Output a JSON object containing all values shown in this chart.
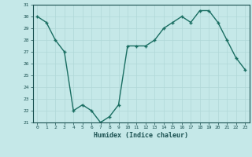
{
  "x": [
    0,
    1,
    2,
    3,
    4,
    5,
    6,
    7,
    8,
    9,
    10,
    11,
    12,
    13,
    14,
    15,
    16,
    17,
    18,
    19,
    20,
    21,
    22,
    23
  ],
  "y": [
    30.0,
    29.5,
    28.0,
    27.0,
    22.0,
    22.5,
    22.0,
    21.0,
    21.5,
    22.5,
    27.5,
    27.5,
    27.5,
    28.0,
    29.0,
    29.5,
    30.0,
    29.5,
    30.5,
    30.5,
    29.5,
    28.0,
    26.5,
    25.5
  ],
  "xlabel": "Humidex (Indice chaleur)",
  "ylim": [
    21,
    31
  ],
  "xlim": [
    -0.5,
    23.5
  ],
  "yticks": [
    21,
    22,
    23,
    24,
    25,
    26,
    27,
    28,
    29,
    30,
    31
  ],
  "xticks": [
    0,
    1,
    2,
    3,
    4,
    5,
    6,
    7,
    8,
    9,
    10,
    11,
    12,
    13,
    14,
    15,
    16,
    17,
    18,
    19,
    20,
    21,
    22,
    23
  ],
  "line_color": "#1a6e62",
  "marker_color": "#1a6e62",
  "bg_color": "#c5e8e8",
  "grid_color": "#b0d8d8",
  "tick_label_color": "#1a5050",
  "xlabel_color": "#1a5050"
}
